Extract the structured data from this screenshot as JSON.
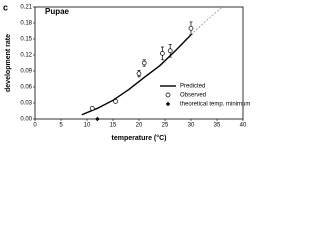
{
  "chart_data": {
    "type": "scatter",
    "panel_label": "c",
    "title": "Pupae",
    "x_label": "temperature (°C)",
    "y_label": "development rate",
    "xlim": [
      0,
      40
    ],
    "xticks": [
      0,
      5,
      10,
      15,
      20,
      25,
      30,
      35,
      40
    ],
    "ylim": [
      0,
      0.21
    ],
    "yticks": [
      {
        "value": 0,
        "label": "0.00"
      },
      {
        "value": 0.03,
        "label": "0.03"
      },
      {
        "value": 0.06,
        "label": "0.06"
      },
      {
        "value": 0.09,
        "label": "0.09"
      },
      {
        "value": 0.12,
        "label": "0.12"
      },
      {
        "value": 0.15,
        "label": "0.15"
      },
      {
        "value": 0.18,
        "label": "0.18"
      },
      {
        "value": 0.21,
        "label": "0.21"
      }
    ],
    "legend": "lower right",
    "series": [
      {
        "name": "Predicted",
        "style": "line",
        "color": "#000000",
        "solid_until": 30,
        "x": [
          9,
          12,
          15,
          18,
          21,
          24,
          27,
          30,
          33,
          36
        ],
        "values": [
          0.008,
          0.02,
          0.035,
          0.055,
          0.078,
          0.1,
          0.128,
          0.158,
          0.185,
          0.21
        ]
      },
      {
        "name": "Observed",
        "style": "open-circle",
        "color": "#000000",
        "x": [
          11,
          15.5,
          20,
          21,
          24.5,
          26,
          30
        ],
        "values": [
          0.02,
          0.033,
          0.085,
          0.105,
          0.123,
          0.128,
          0.17
        ],
        "errors": [
          0.002,
          0.003,
          0.006,
          0.006,
          0.012,
          0.012,
          0.012
        ]
      },
      {
        "name": "theoretical temp. minimum",
        "style": "diamond",
        "color": "#000000",
        "x": [
          12
        ],
        "values": [
          0
        ]
      }
    ]
  }
}
